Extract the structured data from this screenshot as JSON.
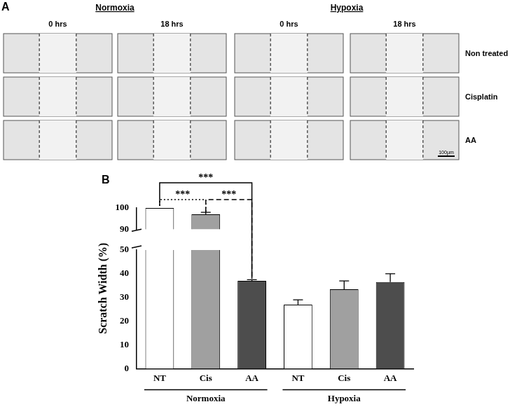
{
  "panel_a": {
    "label": "A",
    "conditions": [
      "Normoxia",
      "Hypoxia"
    ],
    "times": [
      "0 hrs",
      "18 hrs"
    ],
    "rows": [
      "Non treated",
      "Cisplatin",
      "AA"
    ],
    "scale_bar": "100μm"
  },
  "chart_data": {
    "type": "bar",
    "panel_label": "B",
    "y_label": "Scratch Width (%)",
    "categories": [
      "NT",
      "Cis",
      "AA",
      "NT",
      "Cis",
      "AA"
    ],
    "groups": [
      {
        "name": "Normoxia",
        "size": 3
      },
      {
        "name": "Hypoxia",
        "size": 3
      }
    ],
    "values": [
      100,
      97,
      37,
      27,
      33.5,
      36.5
    ],
    "errors": [
      0,
      1,
      0.5,
      2,
      3.5,
      3.5
    ],
    "colors": [
      "#ffffff",
      "#a0a0a0",
      "#4d4d4d",
      "#ffffff",
      "#a0a0a0",
      "#4d4d4d"
    ],
    "ylim": [
      0,
      100
    ],
    "yticks": [
      0,
      10,
      20,
      30,
      40,
      50,
      90,
      100
    ],
    "grid": false,
    "annotations": [
      {
        "from": 0,
        "to": 1,
        "text": "***",
        "line_style": "dotted"
      },
      {
        "from": 0,
        "to": 2,
        "text": "***",
        "line_style": "solid"
      },
      {
        "from": 1,
        "to": 2,
        "text": "***",
        "line_style": "dashed"
      }
    ]
  }
}
